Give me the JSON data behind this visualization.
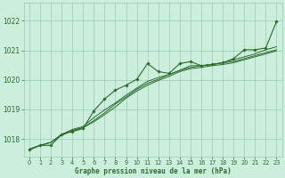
{
  "title": "Graphe pression niveau de la mer (hPa)",
  "background_color": "#cceedd",
  "grid_color": "#99ccbb",
  "line_color": "#2d6b2d",
  "xlim": [
    -0.5,
    23.5
  ],
  "ylim": [
    1017.4,
    1022.6
  ],
  "yticks": [
    1018,
    1019,
    1020,
    1021,
    1022
  ],
  "xticks": [
    0,
    1,
    2,
    3,
    4,
    5,
    6,
    7,
    8,
    9,
    10,
    11,
    12,
    13,
    14,
    15,
    16,
    17,
    18,
    19,
    20,
    21,
    22,
    23
  ],
  "series": [
    [
      1017.65,
      1017.78,
      1017.78,
      1018.15,
      1018.25,
      1018.35,
      1018.95,
      1019.35,
      1019.65,
      1019.82,
      1020.02,
      1020.55,
      1020.28,
      1020.22,
      1020.55,
      1020.62,
      1020.48,
      1020.52,
      1020.58,
      1020.72,
      1021.02,
      1021.02,
      1021.08,
      1021.98
    ],
    [
      1017.65,
      1017.78,
      1017.88,
      1018.15,
      1018.32,
      1018.42,
      1018.72,
      1018.98,
      1019.22,
      1019.48,
      1019.72,
      1019.95,
      1020.08,
      1020.18,
      1020.32,
      1020.48,
      1020.48,
      1020.52,
      1020.58,
      1020.68,
      1020.78,
      1020.88,
      1021.02,
      1021.12
    ],
    [
      1017.65,
      1017.78,
      1017.88,
      1018.15,
      1018.28,
      1018.38,
      1018.62,
      1018.88,
      1019.18,
      1019.42,
      1019.68,
      1019.88,
      1020.02,
      1020.18,
      1020.32,
      1020.42,
      1020.48,
      1020.52,
      1020.58,
      1020.62,
      1020.72,
      1020.82,
      1020.92,
      1021.02
    ],
    [
      1017.62,
      1017.78,
      1017.88,
      1018.12,
      1018.28,
      1018.38,
      1018.58,
      1018.82,
      1019.08,
      1019.38,
      1019.62,
      1019.82,
      1019.98,
      1020.12,
      1020.28,
      1020.38,
      1020.42,
      1020.48,
      1020.52,
      1020.58,
      1020.68,
      1020.78,
      1020.88,
      1020.98
    ]
  ]
}
